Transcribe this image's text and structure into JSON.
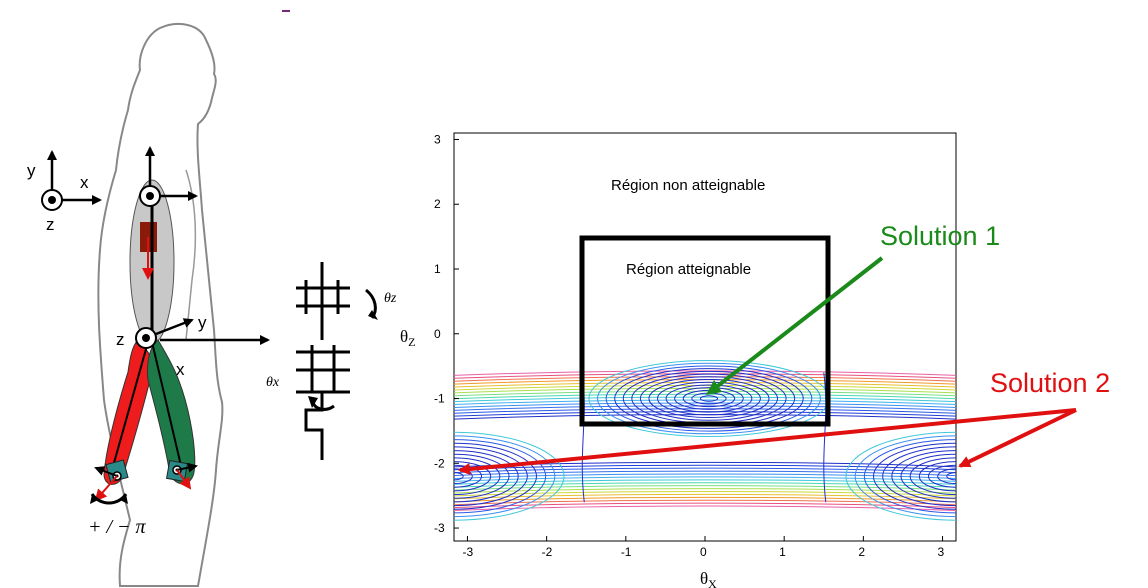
{
  "figure": {
    "coord_frame_1": {
      "x": "x",
      "y": "y",
      "z": "z"
    },
    "coord_frame_2": {
      "y": "y",
      "z": "z",
      "x": "x"
    },
    "rotation_label": "+ / − π",
    "joint": {
      "theta_z": "θz",
      "theta_x": "θx"
    }
  },
  "plot": {
    "y_axis_label": "θ",
    "y_axis_sub": "Z",
    "x_axis_label": "θ",
    "x_axis_sub": "X",
    "x_ticks": [
      "-3",
      "-2",
      "-1",
      "0",
      "1",
      "2",
      "3"
    ],
    "y_ticks": [
      "3",
      "2",
      "1",
      "0",
      "-1",
      "-2",
      "-3"
    ],
    "region_unreachable": "Région non atteignable",
    "region_reachable": "Région atteignable",
    "solution1": "Solution 1",
    "solution2": "Solution 2",
    "solution1_color": "#1a8a1a",
    "solution2_color": "#ee1c1c"
  }
}
